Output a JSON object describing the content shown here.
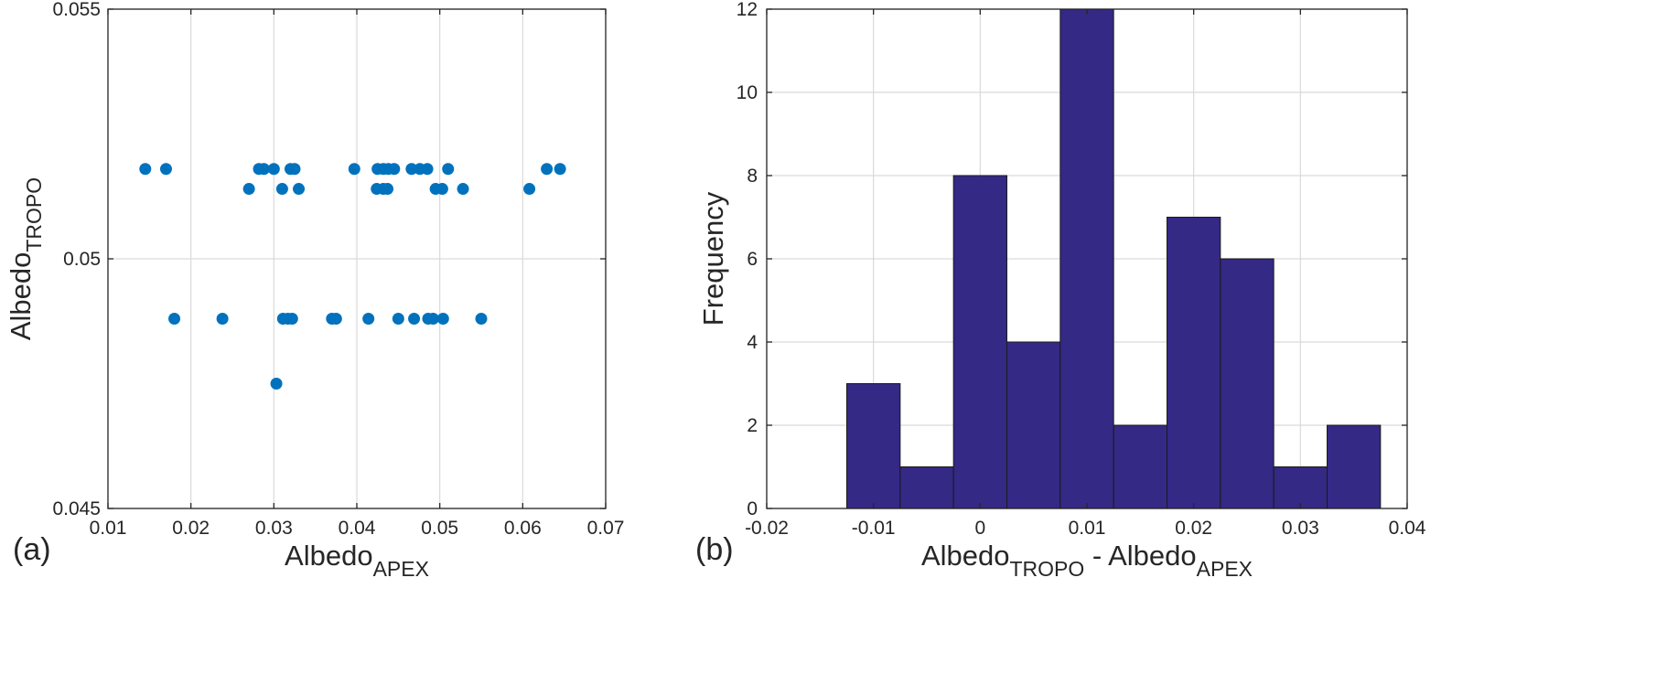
{
  "chart_data": [
    {
      "type": "scatter",
      "panel_label": "(a)",
      "xlabel": "Albedo",
      "xlabel_sub": "APEX",
      "ylabel": "Albedo",
      "ylabel_sub": "TROPO",
      "xlim": [
        0.01,
        0.07
      ],
      "ylim": [
        0.045,
        0.055
      ],
      "xticks": [
        "0.01",
        "0.02",
        "0.03",
        "0.04",
        "0.05",
        "0.06",
        "0.07"
      ],
      "yticks": [
        "0.045",
        "0.05",
        "0.055"
      ],
      "grid": true,
      "marker_color": "#0072BD",
      "points": [
        [
          0.0145,
          0.0518
        ],
        [
          0.017,
          0.0518
        ],
        [
          0.0282,
          0.0518
        ],
        [
          0.0288,
          0.0518
        ],
        [
          0.03,
          0.0518
        ],
        [
          0.032,
          0.0518
        ],
        [
          0.0325,
          0.0518
        ],
        [
          0.0397,
          0.0518
        ],
        [
          0.0425,
          0.0518
        ],
        [
          0.0432,
          0.0518
        ],
        [
          0.0438,
          0.0518
        ],
        [
          0.0445,
          0.0518
        ],
        [
          0.0466,
          0.0518
        ],
        [
          0.0476,
          0.0518
        ],
        [
          0.0485,
          0.0518
        ],
        [
          0.051,
          0.0518
        ],
        [
          0.0629,
          0.0518
        ],
        [
          0.0645,
          0.0518
        ],
        [
          0.027,
          0.0514
        ],
        [
          0.031,
          0.0514
        ],
        [
          0.033,
          0.0514
        ],
        [
          0.0424,
          0.0514
        ],
        [
          0.0432,
          0.0514
        ],
        [
          0.0437,
          0.0514
        ],
        [
          0.0495,
          0.0514
        ],
        [
          0.0503,
          0.0514
        ],
        [
          0.0528,
          0.0514
        ],
        [
          0.0608,
          0.0514
        ],
        [
          0.018,
          0.0488
        ],
        [
          0.0238,
          0.0488
        ],
        [
          0.0311,
          0.0488
        ],
        [
          0.0317,
          0.0488
        ],
        [
          0.0322,
          0.0488
        ],
        [
          0.037,
          0.0488
        ],
        [
          0.0375,
          0.0488
        ],
        [
          0.0414,
          0.0488
        ],
        [
          0.045,
          0.0488
        ],
        [
          0.0469,
          0.0488
        ],
        [
          0.0486,
          0.0488
        ],
        [
          0.0492,
          0.0488
        ],
        [
          0.0504,
          0.0488
        ],
        [
          0.055,
          0.0488
        ],
        [
          0.0303,
          0.0475
        ]
      ]
    },
    {
      "type": "bar",
      "subtype": "histogram",
      "panel_label": "(b)",
      "xlabel_parts": [
        {
          "text": "Albedo",
          "sub": "TROPO"
        },
        {
          "text": " - Albedo",
          "sub": "APEX"
        }
      ],
      "ylabel": "Frequency",
      "xlim": [
        -0.02,
        0.04
      ],
      "ylim": [
        0,
        12
      ],
      "xticks": [
        "-0.02",
        "-0.01",
        "0",
        "0.01",
        "0.02",
        "0.03",
        "0.04"
      ],
      "yticks": [
        "0",
        "2",
        "4",
        "6",
        "8",
        "10",
        "12"
      ],
      "grid": true,
      "bar_color": "#342985",
      "bin_edges": [
        -0.0125,
        -0.0075,
        -0.0025,
        0.0025,
        0.0075,
        0.0125,
        0.0175,
        0.0225,
        0.0275,
        0.0325,
        0.0375
      ],
      "values": [
        3,
        1,
        8,
        4,
        12,
        2,
        7,
        6,
        1,
        2
      ]
    }
  ]
}
